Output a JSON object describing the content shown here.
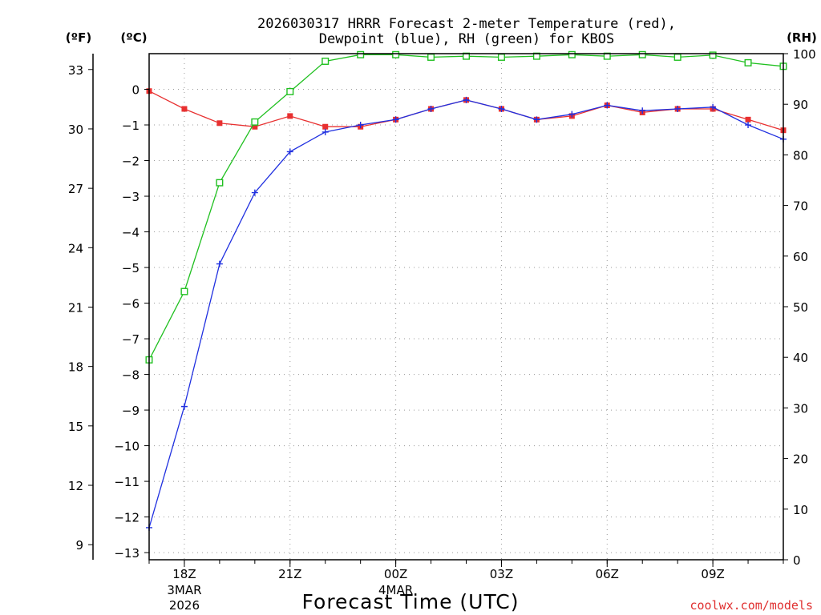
{
  "title_line1": "2026030317 HRRR Forecast 2-meter Temperature (red),",
  "title_line2": "Dewpoint (blue), RH (green) for KBOS",
  "credit": "coolwx.com/models",
  "chart_data": {
    "type": "line",
    "title": "2026030317 HRRR Forecast 2-meter Temperature (red), Dewpoint (blue), RH (green) for KBOS",
    "xlabel": "Forecast Time (UTC)",
    "units": {
      "f": "(ºF)",
      "c": "(ºC)",
      "rh": "(RH)"
    },
    "x_hours": [
      17,
      18,
      19,
      20,
      21,
      22,
      23,
      0,
      1,
      2,
      3,
      4,
      5,
      6,
      7,
      8,
      9,
      10,
      11
    ],
    "x_ticks": [
      {
        "hour": 18,
        "label": "18Z",
        "sub1": "3MAR",
        "sub2": "2026"
      },
      {
        "hour": 21,
        "label": "21Z",
        "sub1": "",
        "sub2": ""
      },
      {
        "hour": 0,
        "label": "00Z",
        "sub1": "4MAR",
        "sub2": ""
      },
      {
        "hour": 3,
        "label": "03Z",
        "sub1": "",
        "sub2": ""
      },
      {
        "hour": 6,
        "label": "06Z",
        "sub1": "",
        "sub2": ""
      },
      {
        "hour": 9,
        "label": "09Z",
        "sub1": "",
        "sub2": ""
      }
    ],
    "ylim_c": [
      -13.2,
      1.0
    ],
    "ylim_rh": [
      0,
      100
    ],
    "yticks_c": [
      "0",
      "-1",
      "-2",
      "-3",
      "-4",
      "-5",
      "-6",
      "-7",
      "-8",
      "-9",
      "-10",
      "-11",
      "-12",
      "-13"
    ],
    "yticks_f": [
      "33",
      "30",
      "27",
      "24",
      "21",
      "18",
      "15",
      "12",
      "9"
    ],
    "yticks_rh": [
      "100",
      "90",
      "80",
      "70",
      "60",
      "50",
      "40",
      "30",
      "20",
      "10",
      "0"
    ],
    "grid": true,
    "series": [
      {
        "name": "Temperature",
        "color": "#e83030",
        "marker": "filled-square",
        "axis": "c",
        "values": [
          -0.05,
          -0.55,
          -0.95,
          -1.05,
          -0.75,
          -1.05,
          -1.05,
          -0.85,
          -0.55,
          -0.3,
          -0.55,
          -0.85,
          -0.75,
          -0.45,
          -0.65,
          -0.55,
          -0.55,
          -0.85,
          -1.15
        ]
      },
      {
        "name": "Dewpoint",
        "color": "#2030e0",
        "marker": "plus",
        "axis": "c",
        "values": [
          -12.3,
          -8.9,
          -4.9,
          -2.9,
          -1.75,
          -1.2,
          -1.0,
          -0.85,
          -0.55,
          -0.3,
          -0.55,
          -0.85,
          -0.7,
          -0.45,
          -0.6,
          -0.55,
          -0.5,
          -1.0,
          -1.4
        ]
      },
      {
        "name": "RH",
        "color": "#20c020",
        "marker": "open-square",
        "axis": "rh",
        "values": [
          39.5,
          53,
          74.5,
          86.5,
          92.5,
          98.5,
          99.8,
          99.8,
          99.3,
          99.5,
          99.3,
          99.5,
          99.8,
          99.5,
          99.8,
          99.3,
          99.7,
          98.2,
          97.5
        ]
      }
    ]
  }
}
